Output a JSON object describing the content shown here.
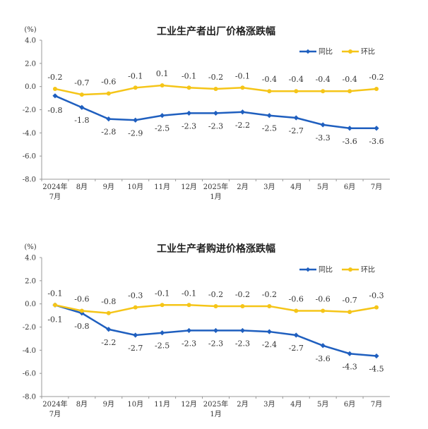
{
  "chart_data": [
    {
      "type": "line",
      "title": "工业生产者出厂价格涨跌幅",
      "unit": "(%)",
      "ylim": [
        -8.0,
        4.0
      ],
      "yticks": [
        "4.0",
        "2.0",
        "0.0",
        "-2.0",
        "-4.0",
        "-6.0",
        "-8.0"
      ],
      "categories": [
        "2024年\n7月",
        "8月",
        "9月",
        "10月",
        "11月",
        "12月",
        "2025年\n1月",
        "2月",
        "3月",
        "4月",
        "5月",
        "6月",
        "7月"
      ],
      "legend_position": "top-right",
      "series": [
        {
          "name": "同比",
          "color": "#1f5fbf",
          "marker": "diamond",
          "values": [
            -0.8,
            -1.8,
            -2.8,
            -2.9,
            -2.5,
            -2.3,
            -2.3,
            -2.2,
            -2.5,
            -2.7,
            -3.3,
            -3.6,
            -3.6
          ],
          "labels": [
            "-0.8",
            "-1.8",
            "-2.8",
            "-2.9",
            "-2.5",
            "-2.3",
            "-2.3",
            "-2.2",
            "-2.5",
            "-2.7",
            "-3.3",
            "-3.6",
            "-3.6"
          ]
        },
        {
          "name": "环比",
          "color": "#f5c518",
          "marker": "circle",
          "values": [
            -0.2,
            -0.7,
            -0.6,
            -0.1,
            0.1,
            -0.1,
            -0.2,
            -0.1,
            -0.4,
            -0.4,
            -0.4,
            -0.4,
            -0.2
          ],
          "labels": [
            "-0.2",
            "-0.7",
            "-0.6",
            "-0.1",
            "0.1",
            "-0.1",
            "-0.2",
            "-0.1",
            "-0.4",
            "-0.4",
            "-0.4",
            "-0.4",
            "-0.2"
          ]
        }
      ]
    },
    {
      "type": "line",
      "title": "工业生产者购进价格涨跌幅",
      "unit": "(%)",
      "ylim": [
        -8.0,
        4.0
      ],
      "yticks": [
        "4.0",
        "2.0",
        "0.0",
        "-2.0",
        "-4.0",
        "-6.0",
        "-8.0"
      ],
      "categories": [
        "2024年\n7月",
        "8月",
        "9月",
        "10月",
        "11月",
        "12月",
        "2025年\n1月",
        "2月",
        "3月",
        "4月",
        "5月",
        "6月",
        "7月"
      ],
      "legend_position": "top-right",
      "series": [
        {
          "name": "同比",
          "color": "#1f5fbf",
          "marker": "diamond",
          "values": [
            -0.1,
            -0.8,
            -2.2,
            -2.7,
            -2.5,
            -2.3,
            -2.3,
            -2.3,
            -2.4,
            -2.7,
            -3.6,
            -4.3,
            -4.5
          ],
          "labels": [
            "-0.1",
            "-0.8",
            "-2.2",
            "-2.7",
            "-2.5",
            "-2.3",
            "-2.3",
            "-2.3",
            "-2.4",
            "-2.7",
            "-3.6",
            "-4.3",
            "-4.5"
          ]
        },
        {
          "name": "环比",
          "color": "#f5c518",
          "marker": "circle",
          "values": [
            -0.1,
            -0.6,
            -0.8,
            -0.3,
            -0.1,
            -0.1,
            -0.2,
            -0.2,
            -0.2,
            -0.6,
            -0.6,
            -0.7,
            -0.3
          ],
          "labels": [
            "-0.1",
            "-0.6",
            "-0.8",
            "-0.3",
            "-0.1",
            "-0.1",
            "-0.2",
            "-0.2",
            "-0.2",
            "-0.6",
            "-0.6",
            "-0.7",
            "-0.3"
          ]
        }
      ]
    }
  ]
}
